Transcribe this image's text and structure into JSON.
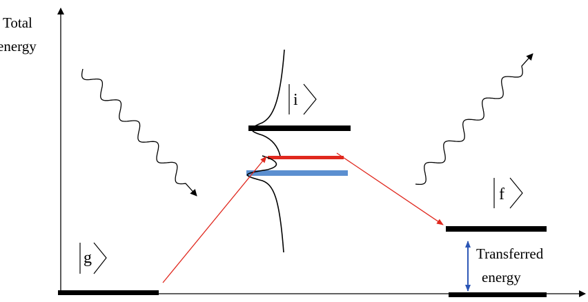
{
  "axis": {
    "y_label_line1": "Total",
    "y_label_line2": "energy"
  },
  "states": {
    "ground": "g",
    "intermediate": "i",
    "final": "f"
  },
  "annotation": {
    "line1": "Transferred",
    "line2": "energy"
  },
  "colors": {
    "level": "#000000",
    "virtual_red": "#e0281e",
    "virtual_blue": "#5b8fd0",
    "transition": "#e0281e",
    "energy_arrow": "#2a55b5"
  }
}
